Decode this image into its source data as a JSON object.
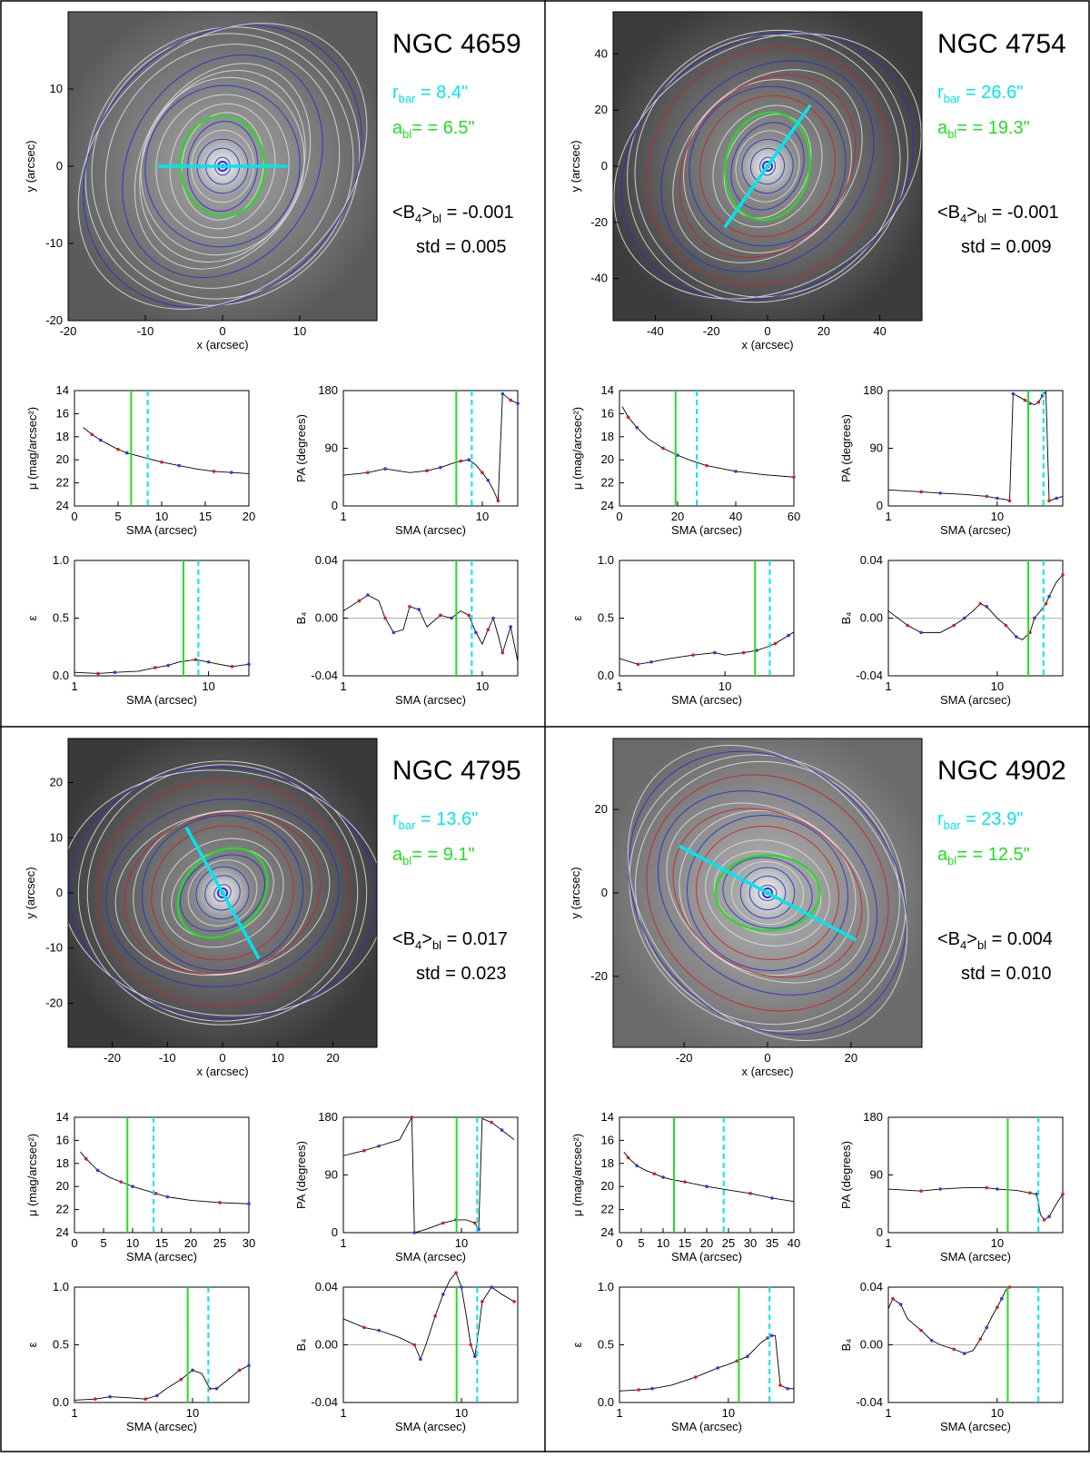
{
  "colors": {
    "bar": "#00e5ee",
    "bulge": "#22dd22",
    "contour_blue": "#2233cc",
    "contour_red": "#cc2222",
    "contour_white": "#dddddd",
    "profile_red": "#d42020",
    "profile_blue": "#2a3fd8"
  },
  "labels": {
    "x_arcsec": "x (arcsec)",
    "y_arcsec": "y (arcsec)",
    "sma": "SMA (arcsec)",
    "mu": "μ (mag/arcsec²)",
    "pa": "PA (degrees)",
    "eps": "ε",
    "b4": "B₄",
    "std_label": "std ="
  },
  "galaxies": [
    {
      "name": "NGC 4659",
      "r_bar": "8.4\"",
      "a_bl": "6.5\"",
      "b4_bl": "-0.001",
      "std": "0.005",
      "image": {
        "lim": 20,
        "ticks": [
          -20,
          -10,
          0,
          10
        ],
        "xticks": [
          -20,
          -10,
          0,
          10
        ],
        "bar_angle": 0,
        "bar_len": 8.4,
        "ell_a": 6.5,
        "ell_b": 5.5,
        "ell_angle": 95,
        "bg": "#5a5a5a",
        "blob": "#9a9a9a"
      },
      "profiles": {
        "mu": {
          "xlim": [
            0,
            20
          ],
          "xticks": [
            0,
            5,
            10,
            15,
            20
          ],
          "ylim": [
            24,
            14
          ],
          "yticks": [
            14,
            16,
            18,
            20,
            22,
            24
          ],
          "x": [
            1,
            2,
            3,
            4,
            5,
            6,
            8,
            10,
            12,
            14,
            16,
            18,
            20
          ],
          "y": [
            17.2,
            17.8,
            18.3,
            18.7,
            19.1,
            19.4,
            19.8,
            20.2,
            20.5,
            20.8,
            21.0,
            21.1,
            21.2
          ]
        },
        "pa": {
          "xlim": [
            1,
            18
          ],
          "log": true,
          "xticks": [
            1,
            10
          ],
          "ylim": [
            0,
            180
          ],
          "yticks": [
            0,
            90,
            180
          ],
          "x": [
            1,
            1.5,
            2,
            3,
            4,
            5,
            6,
            7,
            8,
            9,
            10,
            11,
            12,
            13,
            14,
            15,
            16,
            18
          ],
          "y": [
            48,
            52,
            58,
            52,
            55,
            60,
            66,
            70,
            72,
            64,
            52,
            40,
            25,
            8,
            175,
            170,
            165,
            160
          ]
        },
        "eps": {
          "xlim": [
            1,
            20
          ],
          "log": true,
          "xticks": [
            1,
            10
          ],
          "ylim": [
            0,
            1
          ],
          "yticks": [
            0,
            0.5,
            1
          ],
          "x": [
            1,
            1.5,
            2,
            3,
            4,
            5,
            6,
            8,
            10,
            12,
            15,
            20
          ],
          "y": [
            0.03,
            0.02,
            0.03,
            0.04,
            0.07,
            0.09,
            0.12,
            0.14,
            0.12,
            0.1,
            0.08,
            0.1
          ]
        },
        "b4": {
          "xlim": [
            1,
            18
          ],
          "log": true,
          "xticks": [
            1,
            10
          ],
          "ylim": [
            -0.04,
            0.04
          ],
          "yticks": [
            -0.04,
            0,
            0.04
          ],
          "x": [
            1,
            1.3,
            1.5,
            1.8,
            2,
            2.3,
            2.7,
            3,
            3.5,
            4,
            5,
            6,
            7,
            8,
            9,
            10,
            11,
            12,
            13,
            14,
            16,
            18
          ],
          "y": [
            0.005,
            0.012,
            0.016,
            0.012,
            0.0,
            -0.01,
            -0.008,
            0.008,
            0.006,
            -0.006,
            0.002,
            0.0,
            0.005,
            0.002,
            -0.01,
            -0.018,
            -0.008,
            0.0,
            -0.012,
            -0.024,
            -0.006,
            -0.03
          ]
        }
      },
      "markers": {
        "a_bl": 6.5,
        "r_bar": 8.4
      }
    },
    {
      "name": "NGC 4754",
      "r_bar": "26.6\"",
      "a_bl": "19.3\"",
      "b4_bl": "-0.001",
      "std": "0.009",
      "image": {
        "lim": 55,
        "ticks": [
          -40,
          -20,
          0,
          20,
          40
        ],
        "xticks": [
          -40,
          -20,
          0,
          20,
          40
        ],
        "bar_angle": 55,
        "bar_len": 26.6,
        "ell_a": 19.3,
        "ell_b": 15,
        "ell_angle": 80,
        "bg": "#3c3c3c",
        "blob": "#8a8a8a"
      },
      "profiles": {
        "mu": {
          "xlim": [
            0,
            60
          ],
          "xticks": [
            0,
            20,
            40,
            60
          ],
          "ylim": [
            24,
            14
          ],
          "yticks": [
            14,
            16,
            18,
            20,
            22,
            24
          ],
          "x": [
            1,
            3,
            6,
            10,
            15,
            20,
            25,
            30,
            40,
            50,
            60
          ],
          "y": [
            15.4,
            16.3,
            17.2,
            18.2,
            19.0,
            19.6,
            20.1,
            20.5,
            21.0,
            21.3,
            21.5
          ]
        },
        "pa": {
          "xlim": [
            1,
            40
          ],
          "log": true,
          "xticks": [
            1,
            10
          ],
          "ylim": [
            0,
            180
          ],
          "yticks": [
            0,
            90,
            180
          ],
          "x": [
            1,
            2,
            3,
            5,
            8,
            10,
            12,
            13,
            14,
            16,
            18,
            20,
            22,
            24,
            26,
            28,
            30,
            35,
            40
          ],
          "y": [
            25,
            22,
            20,
            18,
            15,
            12,
            10,
            8,
            175,
            170,
            165,
            160,
            158,
            162,
            172,
            178,
            8,
            12,
            15
          ]
        },
        "eps": {
          "xlim": [
            1,
            45
          ],
          "log": true,
          "xticks": [
            1,
            10
          ],
          "ylim": [
            0,
            1
          ],
          "yticks": [
            0,
            0.5,
            1
          ],
          "x": [
            1,
            1.5,
            2,
            3,
            5,
            8,
            10,
            15,
            20,
            25,
            30,
            40,
            45
          ],
          "y": [
            0.15,
            0.1,
            0.12,
            0.15,
            0.18,
            0.2,
            0.18,
            0.2,
            0.22,
            0.25,
            0.28,
            0.35,
            0.38
          ]
        },
        "b4": {
          "xlim": [
            1,
            40
          ],
          "log": true,
          "xticks": [
            1,
            10
          ],
          "ylim": [
            -0.04,
            0.04
          ],
          "yticks": [
            -0.04,
            0,
            0.04
          ],
          "x": [
            1,
            1.5,
            2,
            3,
            4,
            5,
            6,
            7,
            8,
            10,
            12,
            15,
            17,
            20,
            22,
            25,
            28,
            30,
            35,
            40
          ],
          "y": [
            0.005,
            -0.005,
            -0.01,
            -0.01,
            -0.005,
            0.0,
            0.005,
            0.01,
            0.008,
            0.0,
            -0.005,
            -0.013,
            -0.015,
            -0.01,
            0.0,
            0.005,
            0.01,
            0.015,
            0.025,
            0.03
          ]
        }
      },
      "markers": {
        "a_bl": 19.3,
        "r_bar": 26.6
      }
    },
    {
      "name": "NGC 4795",
      "r_bar": "13.6\"",
      "a_bl": "9.1\"",
      "b4_bl": "0.017",
      "std": "0.023",
      "image": {
        "lim": 28,
        "ticks": [
          -20,
          -10,
          0,
          10,
          20
        ],
        "xticks": [
          -20,
          -10,
          0,
          10,
          20
        ],
        "bar_angle": -61,
        "bar_len": 13.6,
        "ell_a": 9.1,
        "ell_b": 7,
        "ell_angle": 45,
        "bg": "#3a3a3a",
        "blob": "#858585"
      },
      "profiles": {
        "mu": {
          "xlim": [
            0,
            30
          ],
          "xticks": [
            0,
            5,
            10,
            15,
            20,
            25,
            30
          ],
          "ylim": [
            24,
            14
          ],
          "yticks": [
            14,
            16,
            18,
            20,
            22,
            24
          ],
          "x": [
            1,
            2,
            4,
            6,
            8,
            10,
            12,
            14,
            16,
            20,
            25,
            30
          ],
          "y": [
            17.0,
            17.6,
            18.6,
            19.2,
            19.6,
            20.0,
            20.3,
            20.6,
            20.9,
            21.2,
            21.4,
            21.5
          ]
        },
        "pa": {
          "xlim": [
            1,
            30
          ],
          "log": true,
          "xticks": [
            1,
            10
          ],
          "ylim": [
            0,
            180
          ],
          "yticks": [
            0,
            90,
            180
          ],
          "x": [
            1,
            1.5,
            2,
            3,
            3.8,
            4,
            5,
            7,
            9,
            11,
            13,
            14,
            15,
            18,
            22,
            28
          ],
          "y": [
            120,
            128,
            135,
            145,
            180,
            0,
            5,
            15,
            20,
            20,
            15,
            5,
            178,
            172,
            160,
            145
          ]
        },
        "eps": {
          "xlim": [
            1,
            30
          ],
          "log": true,
          "xticks": [
            1,
            10
          ],
          "ylim": [
            0,
            1
          ],
          "yticks": [
            0,
            0.5,
            1
          ],
          "x": [
            1,
            1.5,
            2,
            3,
            4,
            5,
            6,
            8,
            10,
            12,
            14,
            16,
            20,
            25,
            30
          ],
          "y": [
            0.02,
            0.03,
            0.05,
            0.04,
            0.03,
            0.06,
            0.12,
            0.2,
            0.28,
            0.25,
            0.12,
            0.12,
            0.2,
            0.28,
            0.32
          ]
        },
        "b4": {
          "xlim": [
            1,
            30
          ],
          "log": true,
          "xticks": [
            1,
            10
          ],
          "ylim": [
            -0.04,
            0.04
          ],
          "yticks": [
            -0.04,
            0,
            0.04
          ],
          "x": [
            1,
            1.5,
            2,
            3,
            4,
            4.5,
            5,
            6,
            7,
            8,
            9,
            10,
            11,
            12,
            13,
            14,
            15,
            18,
            22,
            28
          ],
          "y": [
            0.018,
            0.012,
            0.01,
            0.005,
            0.0,
            -0.01,
            0.0,
            0.02,
            0.035,
            0.045,
            0.05,
            0.04,
            0.02,
            0.0,
            -0.008,
            0.01,
            0.03,
            0.04,
            0.035,
            0.03
          ]
        }
      },
      "markers": {
        "a_bl": 9.1,
        "r_bar": 13.6
      }
    },
    {
      "name": "NGC 4902",
      "r_bar": "23.9\"",
      "a_bl": "12.5\"",
      "b4_bl": "0.004",
      "std": "0.010",
      "image": {
        "lim": 37,
        "ticks": [
          -20,
          0,
          20
        ],
        "xticks": [
          -20,
          0,
          20
        ],
        "bar_angle": -28,
        "bar_len": 23.9,
        "ell_a": 12.5,
        "ell_b": 9,
        "ell_angle": 0,
        "bg": "#6a6a6a",
        "blob": "#a8a8a8"
      },
      "profiles": {
        "mu": {
          "xlim": [
            0,
            40
          ],
          "xticks": [
            0,
            5,
            10,
            15,
            20,
            25,
            30,
            35,
            40
          ],
          "ylim": [
            24,
            14
          ],
          "yticks": [
            14,
            16,
            18,
            20,
            22,
            24
          ],
          "x": [
            1,
            2,
            4,
            6,
            8,
            10,
            12,
            15,
            20,
            25,
            30,
            35,
            40
          ],
          "y": [
            17.0,
            17.5,
            18.2,
            18.6,
            18.9,
            19.2,
            19.4,
            19.6,
            20.0,
            20.3,
            20.6,
            21.0,
            21.3
          ]
        },
        "pa": {
          "xlim": [
            1,
            40
          ],
          "log": true,
          "xticks": [
            1,
            10
          ],
          "ylim": [
            0,
            180
          ],
          "yticks": [
            0,
            90,
            180
          ],
          "x": [
            1,
            2,
            3,
            5,
            8,
            10,
            15,
            20,
            23,
            25,
            27,
            30,
            35,
            40
          ],
          "y": [
            68,
            65,
            68,
            70,
            70,
            68,
            66,
            62,
            60,
            28,
            20,
            25,
            45,
            60
          ]
        },
        "eps": {
          "xlim": [
            1,
            40
          ],
          "log": true,
          "xticks": [
            1,
            10
          ],
          "ylim": [
            0,
            1
          ],
          "yticks": [
            0,
            0.5,
            1
          ],
          "x": [
            1,
            1.5,
            2,
            3,
            5,
            8,
            10,
            12,
            15,
            20,
            23,
            25,
            27,
            30,
            35,
            40
          ],
          "y": [
            0.1,
            0.11,
            0.12,
            0.15,
            0.22,
            0.3,
            0.33,
            0.36,
            0.4,
            0.52,
            0.56,
            0.58,
            0.58,
            0.15,
            0.12,
            0.12
          ]
        },
        "b4": {
          "xlim": [
            1,
            40
          ],
          "log": true,
          "xticks": [
            1,
            10
          ],
          "ylim": [
            -0.04,
            0.04
          ],
          "yticks": [
            -0.04,
            0,
            0.04
          ],
          "x": [
            1,
            1.1,
            1.3,
            1.5,
            2,
            2.5,
            3,
            4,
            5,
            6,
            7,
            8,
            9,
            10,
            11,
            12,
            13
          ],
          "y": [
            0.025,
            0.032,
            0.028,
            0.018,
            0.01,
            0.003,
            0.0,
            -0.003,
            -0.006,
            -0.004,
            0.004,
            0.012,
            0.02,
            0.026,
            0.032,
            0.038,
            0.04
          ]
        }
      },
      "markers": {
        "a_bl": 12.5,
        "r_bar": 23.9
      }
    }
  ]
}
